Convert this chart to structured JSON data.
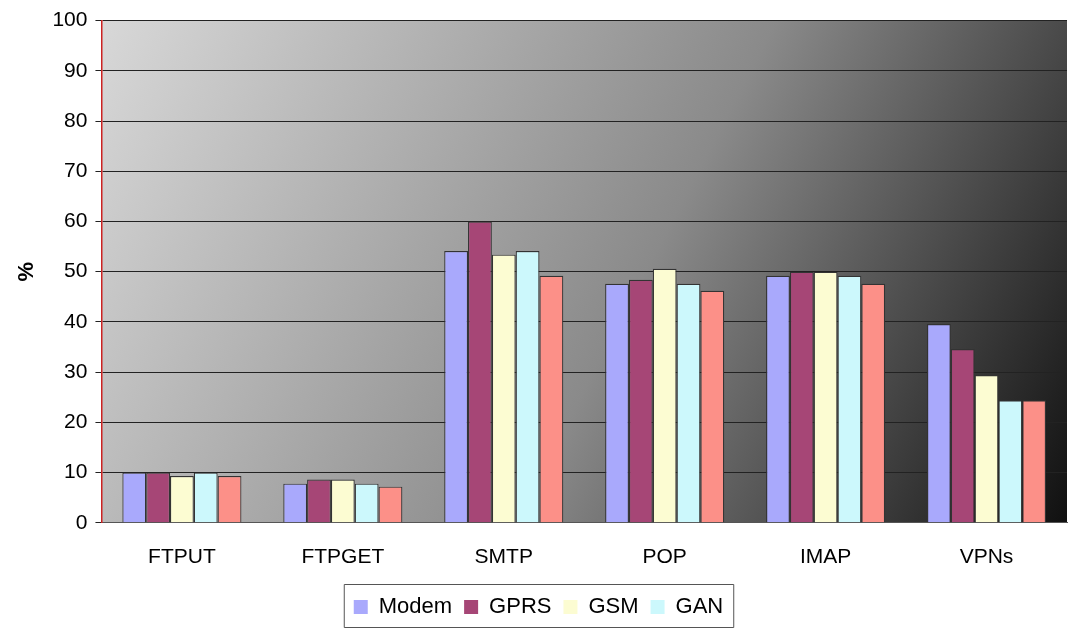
{
  "chart_data": {
    "type": "bar",
    "ylabel": "%",
    "categories": [
      "FTPUT",
      "FTPGET",
      "SMTP",
      "POP",
      "IMAP",
      "VPNs"
    ],
    "series": [
      {
        "name": "Modem",
        "color": "#a9a9fc",
        "values": [
          10,
          7.8,
          54.1,
          47.6,
          49.2,
          39.6
        ]
      },
      {
        "name": "GPRS",
        "color": "#a64676",
        "values": [
          10,
          8.6,
          60,
          48.4,
          50,
          34.6
        ]
      },
      {
        "name": "GSM",
        "color": "#fcfcd2",
        "values": [
          9.3,
          8.6,
          53.4,
          50.6,
          50,
          29.4
        ]
      },
      {
        "name": "GAN",
        "color": "#ccf8fc",
        "values": [
          10,
          7.8,
          54.1,
          47.6,
          49.2,
          24.4
        ]
      },
      {
        "color": "#fc9088",
        "values": [
          9.3,
          7.2,
          49.2,
          46.2,
          47.6,
          24.4
        ]
      }
    ],
    "ylim": [
      0,
      100
    ],
    "yticks": [
      0,
      10,
      20,
      30,
      40,
      50,
      60,
      70,
      80,
      90,
      100
    ],
    "grid": "y",
    "legend": "bottom"
  }
}
